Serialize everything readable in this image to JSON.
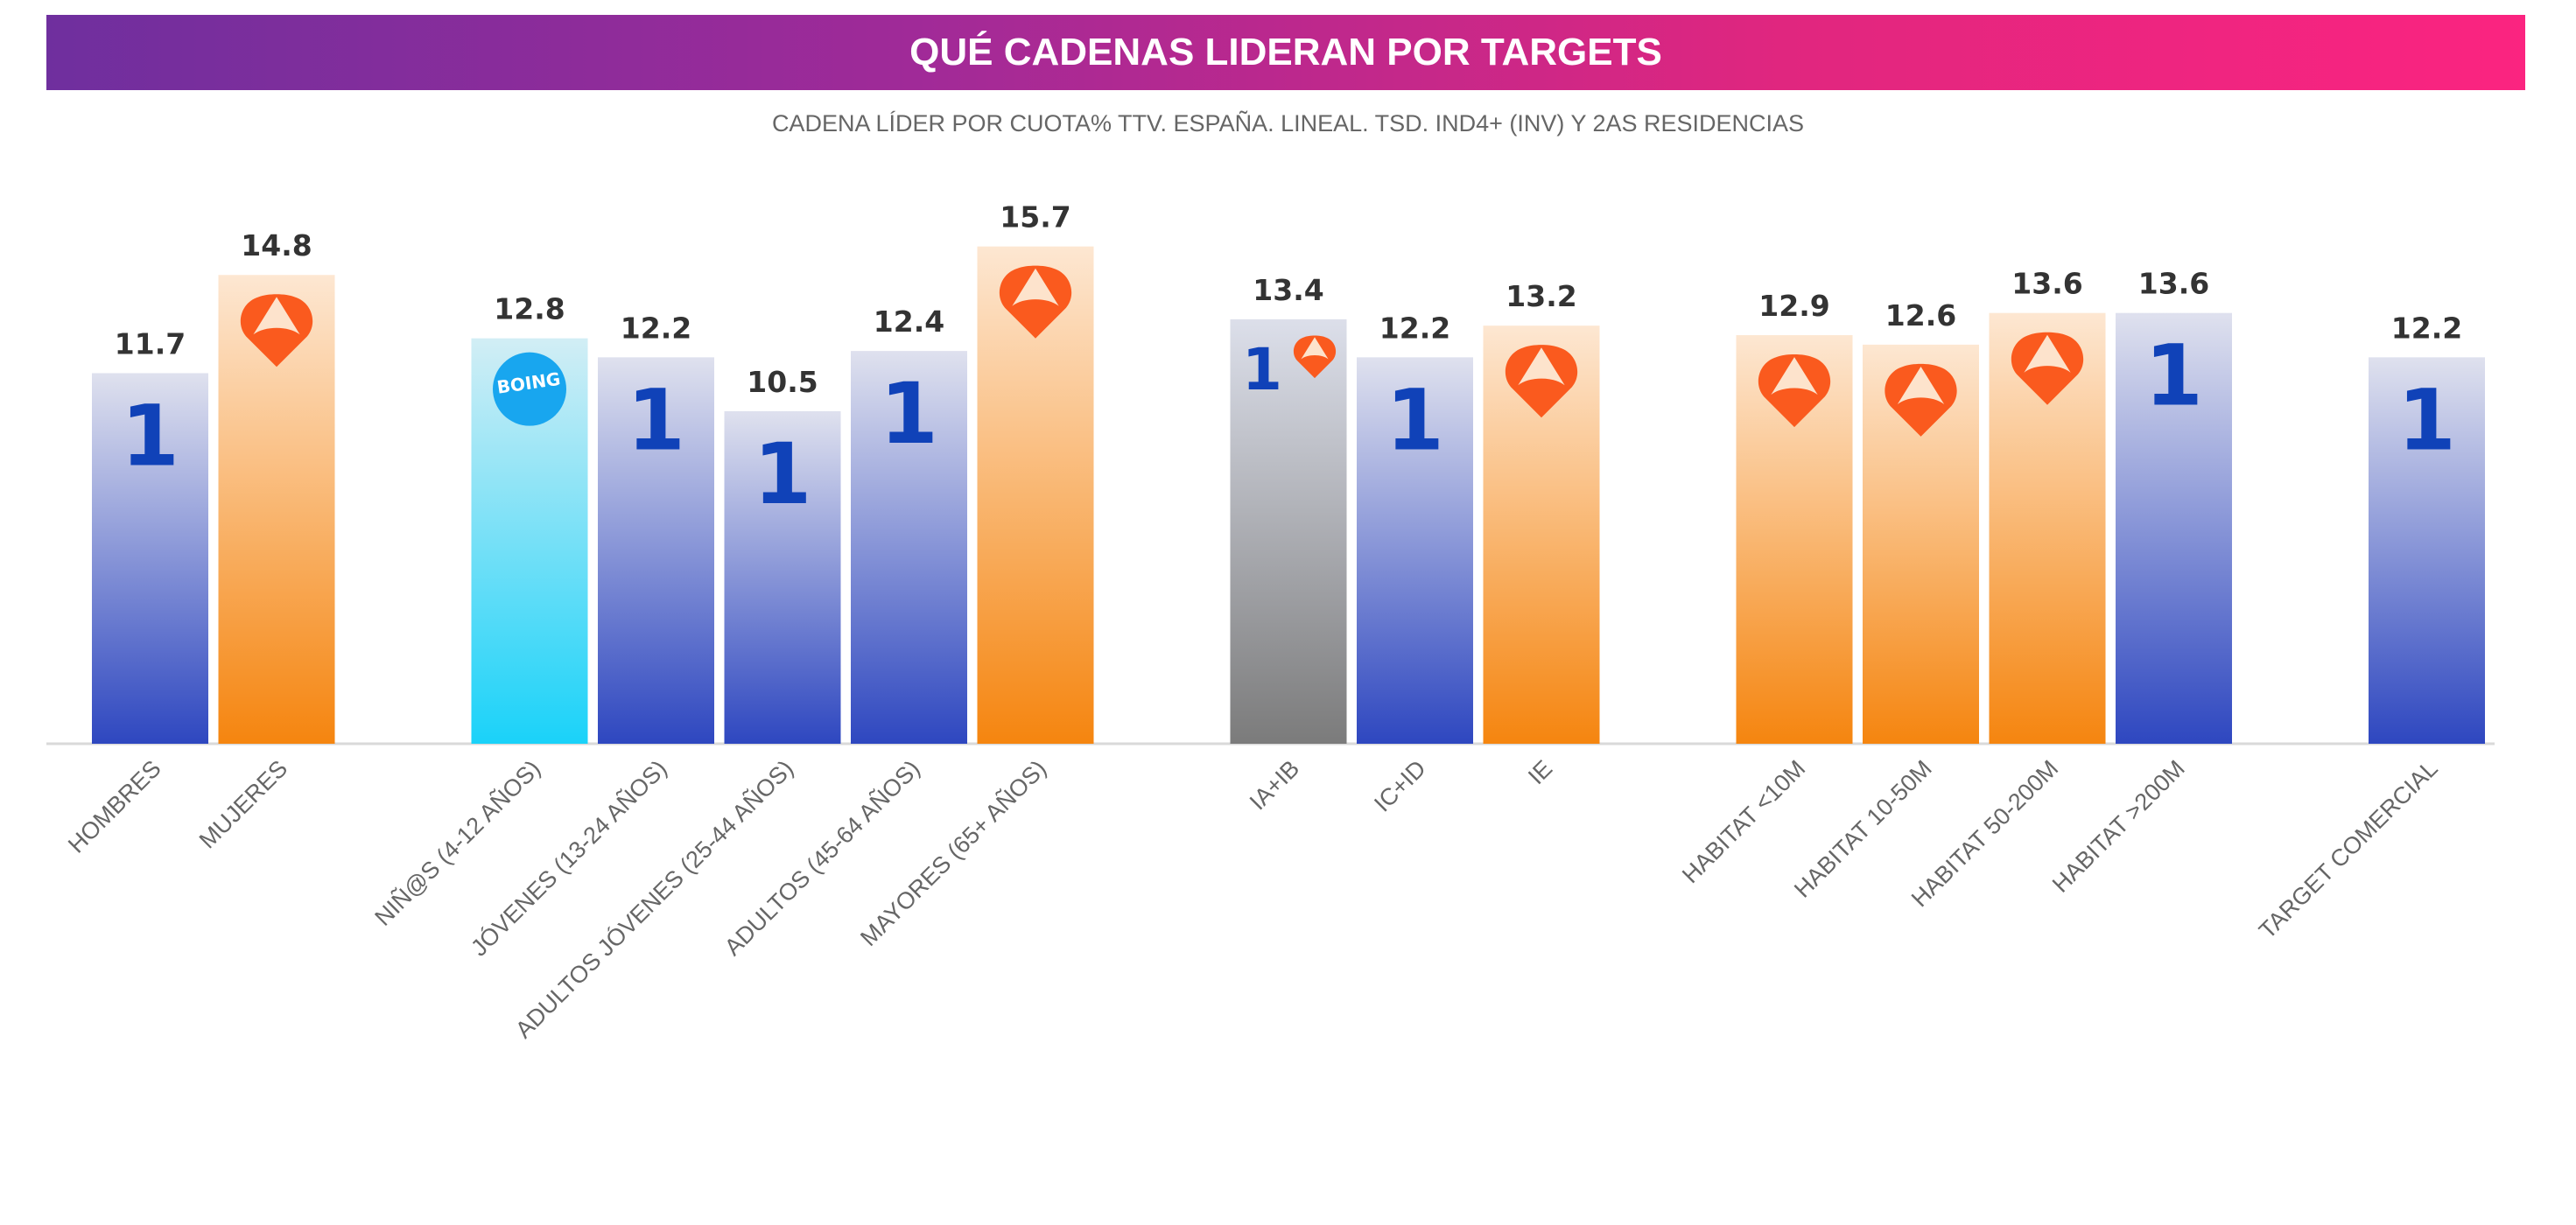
{
  "chart_data": {
    "type": "bar",
    "title": "QUÉ CADENAS LIDERAN POR TARGETS",
    "subtitle": "CADENA LÍDER POR CUOTA% TTV. ESPAÑA. LINEAL. TSD. IND4+ (INV) Y 2AS RESIDENCIAS",
    "xlabel": "",
    "ylabel": "",
    "ylim": [
      0,
      16
    ],
    "grid": false,
    "legend": "none",
    "categories": [
      "HOMBRES",
      "MUJERES",
      "NIÑ@S (4-12 AÑOS)",
      "JÓVENES (13-24 AÑOS)",
      "ADULTOS JÓVENES (25-44 AÑOS)",
      "ADULTOS (45-64 AÑOS)",
      "MAYORES (65+ AÑOS)",
      "IA+IB",
      "IC+ID",
      "IE",
      "HABITAT <10M",
      "HABITAT 10-50M",
      "HABITAT 50-200M",
      "HABITAT >200M",
      "TARGET COMERCIAL"
    ],
    "values": [
      11.7,
      14.8,
      12.8,
      12.2,
      10.5,
      12.4,
      15.7,
      13.4,
      12.2,
      13.2,
      12.9,
      12.6,
      13.6,
      13.6,
      12.2
    ],
    "groups": [
      [
        0,
        1
      ],
      [
        2,
        3,
        4,
        5,
        6
      ],
      [
        7,
        8,
        9
      ],
      [
        10,
        11,
        12,
        13
      ],
      [
        14
      ]
    ],
    "leader_channel": [
      "la1",
      "antena3",
      "boing",
      "la1",
      "la1",
      "la1",
      "antena3",
      "la1+antena3",
      "la1",
      "antena3",
      "antena3",
      "antena3",
      "antena3",
      "la1",
      "la1"
    ],
    "logo_text": {
      "la1": "1",
      "boing": "BOING"
    },
    "colors": {
      "la1": [
        "#dfe1ee",
        "#2e47c0"
      ],
      "antena3": [
        "#fde7d2",
        "#f5850f"
      ],
      "boing": [
        "#d2eef5",
        "#1ad2f9"
      ],
      "la1+antena3": [
        "#dcdfea",
        "#7b7b7b"
      ],
      "la1_logo": "#1042b8",
      "antena3_logo": "#fa5a1e",
      "boing_logo": "#18a6ef"
    }
  }
}
